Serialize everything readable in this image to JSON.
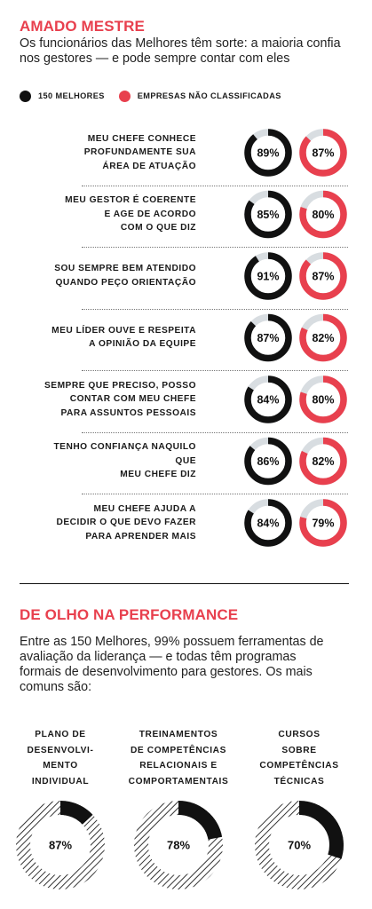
{
  "section1": {
    "title": "AMADO MESTRE",
    "subtitle": "Os funcionários das Melhores têm sorte: a maioria confia nos gestores — e pode sempre contar com eles"
  },
  "legend": [
    {
      "label": "150 MELHORES",
      "color": "#111111"
    },
    {
      "label": "EMPRESAS NÃO CLASSIFICADAS",
      "color": "#e8404e"
    }
  ],
  "section2": {
    "title": "DE OLHO NA PERFORMANCE",
    "intro": "Entre as 150 Melhores, 99% possuem ferramentas de avaliação da liderança — e todas têm programas formais de desenvolvimento para gestores. Os mais comuns são:"
  },
  "colors": {
    "accent": "#e8404e",
    "dark": "#111111",
    "track": "#d8dde1"
  },
  "chart_data": [
    {
      "type": "donut",
      "series": [
        {
          "name": "150 MELHORES",
          "color": "#111111"
        },
        {
          "name": "EMPRESAS NÃO CLASSIFICADAS",
          "color": "#e8404e"
        }
      ],
      "categories": [
        "MEU CHEFE CONHECE PROFUNDAMENTE SUA ÁREA DE ATUAÇÃO",
        "MEU GESTOR É COERENTE E AGE DE ACORDO COM O QUE DIZ",
        "SOU SEMPRE BEM ATENDIDO QUANDO PEÇO ORIENTAÇÃO",
        "MEU LÍDER OUVE E RESPEITA A OPINIÃO DA EQUIPE",
        "SEMPRE QUE PRECISO, POSSO CONTAR COM MEU CHEFE PARA ASSUNTOS PESSOAIS",
        "TENHO CONFIANÇA NAQUILO QUE MEU CHEFE DIZ",
        "MEU CHEFE AJUDA A DECIDIR O QUE DEVO FAZER PARA APRENDER MAIS"
      ],
      "label_lines": [
        [
          "MEU CHEFE CONHECE",
          "PROFUNDAMENTE SUA",
          "ÁREA DE ATUAÇÃO"
        ],
        [
          "MEU GESTOR É COERENTE",
          "E AGE DE ACORDO",
          "COM O QUE DIZ"
        ],
        [
          "SOU SEMPRE BEM ATENDIDO",
          "QUANDO PEÇO ORIENTAÇÃO"
        ],
        [
          "MEU LÍDER OUVE E RESPEITA",
          "A OPINIÃO DA EQUIPE"
        ],
        [
          "SEMPRE QUE PRECISO, POSSO",
          "CONTAR COM MEU CHEFE",
          "PARA ASSUNTOS PESSOAIS"
        ],
        [
          "TENHO CONFIANÇA NAQUILO",
          "QUE",
          "MEU CHEFE DIZ"
        ],
        [
          "MEU CHEFE AJUDA A",
          "DECIDIR O QUE DEVO FAZER",
          "PARA APRENDER MAIS"
        ]
      ],
      "values": [
        [
          89,
          87
        ],
        [
          85,
          80
        ],
        [
          91,
          87
        ],
        [
          87,
          82
        ],
        [
          84,
          80
        ],
        [
          86,
          82
        ],
        [
          84,
          79
        ]
      ],
      "value_labels": [
        [
          "89%",
          "87%"
        ],
        [
          "85%",
          "80%"
        ],
        [
          "91%",
          "87%"
        ],
        [
          "87%",
          "82%"
        ],
        [
          "84%",
          "80%"
        ],
        [
          "86%",
          "82%"
        ],
        [
          "84%",
          "79%"
        ]
      ]
    },
    {
      "type": "donut",
      "categories": [
        "PLANO DE DESENVOLVIMENTO INDIVIDUAL",
        "TREINAMENTOS DE COMPETÊNCIAS RELACIONAIS E COMPORTAMENTAIS",
        "CURSOS SOBRE COMPETÊNCIAS TÉCNICAS"
      ],
      "label_lines": [
        [
          "PLANO DE",
          "DESENVOLVI-",
          "MENTO",
          "INDIVIDUAL"
        ],
        [
          "TREINAMENTOS",
          "DE COMPETÊNCIAS",
          "RELACIONAIS E",
          "COMPORTAMENTAIS"
        ],
        [
          "CURSOS",
          "SOBRE",
          "COMPETÊNCIAS",
          "TÉCNICAS"
        ]
      ],
      "values": [
        87,
        78,
        70
      ],
      "value_labels": [
        "87%",
        "78%",
        "70%"
      ]
    }
  ]
}
